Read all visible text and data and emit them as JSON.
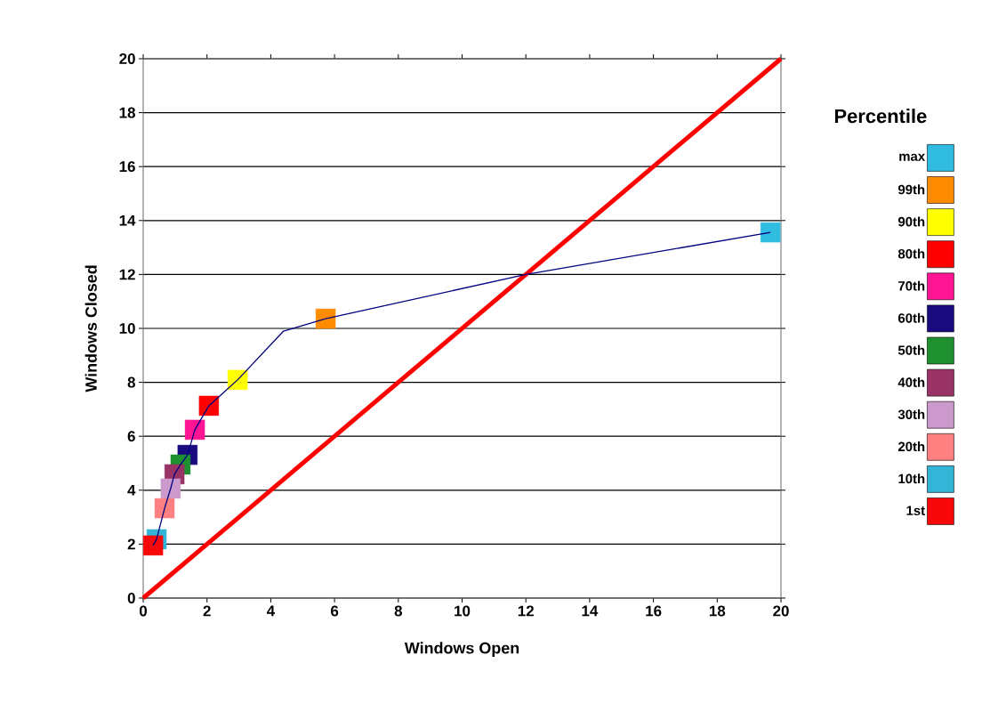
{
  "chart_data": {
    "type": "scatter",
    "xlabel": "Windows Open",
    "ylabel": "Windows Closed",
    "legend_title": "Percentile",
    "legend": "right",
    "grid": "y",
    "marker": "square",
    "xlim": [
      0,
      20
    ],
    "ylim": [
      0,
      20
    ],
    "xticks": [
      0,
      2,
      4,
      6,
      8,
      10,
      12,
      14,
      16,
      18,
      20
    ],
    "yticks": [
      0,
      2,
      4,
      6,
      8,
      10,
      12,
      14,
      16,
      18,
      20
    ],
    "series": [
      {
        "type": "line",
        "color": "#ff0000",
        "x": [
          0,
          20
        ],
        "values": [
          0,
          20
        ],
        "marker": "none"
      },
      {
        "type": "line",
        "color": "#000080",
        "x": [
          0.31,
          0.42,
          0.67,
          0.86,
          0.98,
          1.17,
          1.39,
          1.62,
          2.06,
          2.96,
          4.4,
          5.72,
          12,
          19.67
        ],
        "values": [
          1.95,
          2.18,
          3.33,
          4.06,
          4.59,
          4.95,
          5.31,
          6.24,
          7.13,
          8.09,
          9.9,
          10.36,
          12,
          13.56
        ],
        "marker": "none"
      },
      {
        "name": "max",
        "color": "#30bce0",
        "x": [
          19.67
        ],
        "values": [
          13.56
        ]
      },
      {
        "name": "99th",
        "color": "#ff8c00",
        "x": [
          5.72
        ],
        "values": [
          10.36
        ]
      },
      {
        "name": "90th",
        "color": "#ffff00",
        "x": [
          2.96
        ],
        "values": [
          8.09
        ]
      },
      {
        "name": "80th",
        "color": "#ff0000",
        "x": [
          2.06
        ],
        "values": [
          7.13
        ]
      },
      {
        "name": "70th",
        "color": "#ff1493",
        "x": [
          1.62
        ],
        "values": [
          6.24
        ]
      },
      {
        "name": "60th",
        "color": "#1a0a80",
        "x": [
          1.39
        ],
        "values": [
          5.31
        ]
      },
      {
        "name": "50th",
        "color": "#1e9030",
        "x": [
          1.17
        ],
        "values": [
          4.95
        ]
      },
      {
        "name": "40th",
        "color": "#993366",
        "x": [
          0.98
        ],
        "values": [
          4.59
        ]
      },
      {
        "name": "30th",
        "color": "#cc99cc",
        "x": [
          0.86
        ],
        "values": [
          4.06
        ]
      },
      {
        "name": "20th",
        "color": "#ff8080",
        "x": [
          0.67
        ],
        "values": [
          3.33
        ]
      },
      {
        "name": "10th",
        "color": "#33b5d8",
        "x": [
          0.42
        ],
        "values": [
          2.18
        ]
      },
      {
        "name": "1st",
        "color": "#f80808",
        "x": [
          0.31
        ],
        "values": [
          1.95
        ]
      }
    ]
  }
}
